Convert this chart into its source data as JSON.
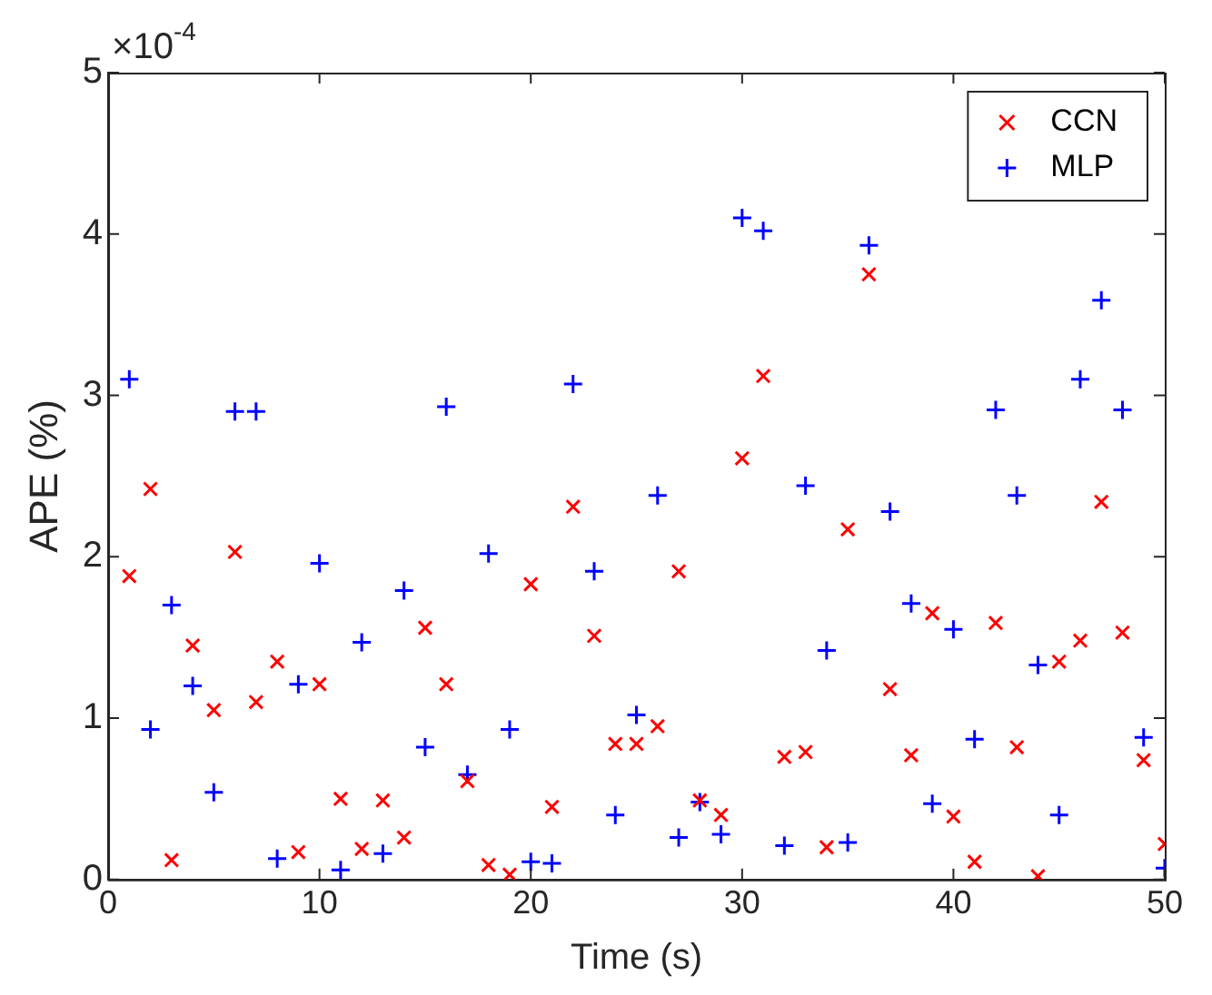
{
  "chart_data": {
    "type": "scatter",
    "xlabel": "Time (s)",
    "ylabel": "APE (%)",
    "annotations": [
      "×10$^{-4}$"
    ],
    "x": [
      1,
      2,
      3,
      4,
      5,
      6,
      7,
      8,
      9,
      10,
      11,
      12,
      13,
      14,
      15,
      16,
      17,
      18,
      19,
      20,
      21,
      22,
      23,
      24,
      25,
      26,
      27,
      28,
      29,
      30,
      31,
      32,
      33,
      34,
      35,
      36,
      37,
      38,
      39,
      40,
      41,
      42,
      43,
      44,
      45,
      46,
      47,
      48,
      49,
      50
    ],
    "series": [
      {
        "name": "CCN",
        "color": "#ff0000",
        "marker": "x",
        "values": [
          1.88,
          2.42,
          0.12,
          1.45,
          1.05,
          2.03,
          1.1,
          1.35,
          0.17,
          1.21,
          0.5,
          0.19,
          0.49,
          0.26,
          1.56,
          1.21,
          0.61,
          0.09,
          0.03,
          1.83,
          0.45,
          2.31,
          1.51,
          0.84,
          0.84,
          0.95,
          1.91,
          0.49,
          0.4,
          2.61,
          3.12,
          0.76,
          0.79,
          0.2,
          2.17,
          3.75,
          1.18,
          0.77,
          1.65,
          0.39,
          0.11,
          1.59,
          0.82,
          0.02,
          1.35,
          1.48,
          2.34,
          1.53,
          0.74,
          0.22
        ]
      },
      {
        "name": "MLP",
        "color": "#0000ff",
        "marker": "cross",
        "values": [
          3.1,
          0.93,
          1.7,
          1.2,
          0.54,
          2.9,
          2.9,
          0.13,
          1.21,
          1.96,
          0.06,
          1.47,
          0.16,
          1.79,
          0.82,
          2.93,
          0.65,
          2.02,
          0.93,
          0.11,
          0.1,
          3.07,
          1.91,
          0.4,
          1.02,
          2.38,
          0.26,
          0.48,
          0.28,
          4.1,
          4.02,
          0.21,
          2.44,
          1.42,
          0.23,
          3.93,
          2.28,
          1.71,
          0.47,
          1.55,
          0.87,
          2.91,
          2.38,
          1.33,
          0.4,
          3.1,
          3.59,
          2.91,
          0.88,
          0.07
        ]
      }
    ],
    "xlim": [
      0,
      50
    ],
    "xticks": [
      0,
      10,
      20,
      30,
      40,
      50
    ],
    "ylim": [
      0,
      5
    ],
    "yticks": [
      0,
      1,
      2,
      3,
      4,
      5
    ],
    "grid": false,
    "legend": "top right"
  }
}
